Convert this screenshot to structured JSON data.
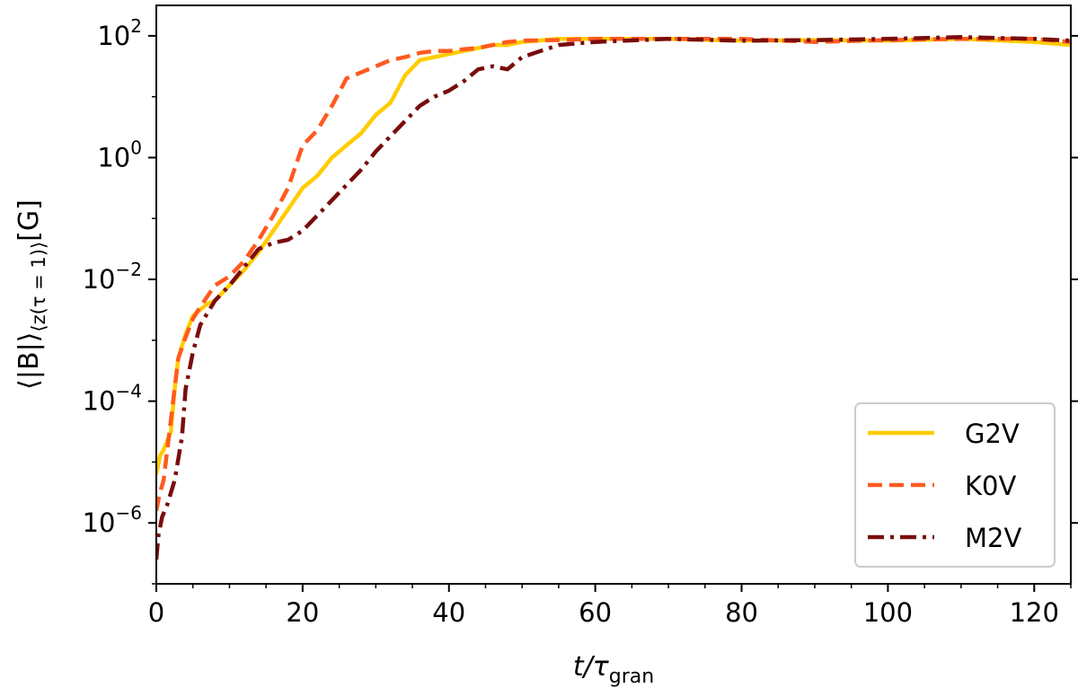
{
  "chart_data": {
    "type": "line",
    "title": "",
    "xlabel": {
      "main": "t/τ",
      "sub": "gran"
    },
    "ylabel": {
      "main": "⟨|B|⟩",
      "sub": "⟨z(τ = 1)⟩",
      "unit": "[G]"
    },
    "xlim": [
      0,
      125
    ],
    "ylim_log10": [
      -7.0,
      2.5
    ],
    "yscale": "log",
    "grid": false,
    "legend_position": "bottom-right",
    "x_ticks": [
      {
        "value": 0,
        "label": "0"
      },
      {
        "value": 20,
        "label": "20"
      },
      {
        "value": 40,
        "label": "40"
      },
      {
        "value": 60,
        "label": "60"
      },
      {
        "value": 80,
        "label": "80"
      },
      {
        "value": 100,
        "label": "100"
      },
      {
        "value": 120,
        "label": "120"
      }
    ],
    "y_ticks": [
      {
        "value_log10": 2,
        "base": "10",
        "exp": "2"
      },
      {
        "value_log10": 0,
        "base": "10",
        "exp": "0"
      },
      {
        "value_log10": -2,
        "base": "10",
        "exp": "−2"
      },
      {
        "value_log10": -4,
        "base": "10",
        "exp": "−4"
      },
      {
        "value_log10": -6,
        "base": "10",
        "exp": "−6"
      }
    ],
    "series": [
      {
        "name": "G2V",
        "color": "#ffcc00",
        "dash": "solid",
        "x": [
          0,
          0.5,
          1,
          2,
          2.5,
          3,
          4,
          5,
          6,
          7,
          8,
          10,
          12,
          14,
          16,
          18,
          20,
          22,
          24,
          26,
          28,
          30,
          32,
          34,
          36,
          38,
          40,
          42,
          44,
          46,
          48,
          50,
          55,
          60,
          70,
          80,
          90,
          100,
          110,
          120,
          125
        ],
        "y_log10": [
          -5.2,
          -4.9,
          -4.8,
          -4.5,
          -3.8,
          -3.3,
          -2.9,
          -2.6,
          -2.5,
          -2.4,
          -2.35,
          -2.1,
          -1.85,
          -1.55,
          -1.2,
          -0.85,
          -0.5,
          -0.3,
          0.0,
          0.2,
          0.4,
          0.7,
          0.9,
          1.35,
          1.6,
          1.65,
          1.7,
          1.75,
          1.8,
          1.85,
          1.85,
          1.9,
          1.95,
          1.95,
          1.95,
          1.92,
          1.93,
          1.92,
          1.95,
          1.9,
          1.85
        ]
      },
      {
        "name": "K0V",
        "color": "#ff5a1f",
        "dash": "dashed",
        "x": [
          0,
          0.5,
          1,
          2,
          3,
          4,
          5,
          6,
          8,
          10,
          12,
          14,
          16,
          18,
          20,
          22,
          24,
          26,
          28,
          30,
          32,
          34,
          36,
          38,
          40,
          42,
          44,
          46,
          48,
          50,
          55,
          60,
          70,
          80,
          90,
          100,
          110,
          120,
          125
        ],
        "y_log10": [
          -5.8,
          -5.5,
          -5.3,
          -4.3,
          -3.3,
          -2.95,
          -2.65,
          -2.45,
          -2.1,
          -1.95,
          -1.7,
          -1.35,
          -0.95,
          -0.5,
          0.2,
          0.45,
          0.85,
          1.3,
          1.4,
          1.5,
          1.6,
          1.65,
          1.72,
          1.75,
          1.75,
          1.78,
          1.8,
          1.85,
          1.9,
          1.92,
          1.93,
          1.95,
          1.95,
          1.95,
          1.9,
          1.93,
          1.95,
          1.95,
          1.9
        ]
      },
      {
        "name": "M2V",
        "color": "#7a0d0d",
        "dash": "dashdot",
        "x": [
          0,
          0.3,
          0.8,
          1.5,
          2.5,
          3.5,
          4,
          5,
          6,
          8,
          10,
          12,
          14,
          16,
          18,
          20,
          22,
          24,
          26,
          28,
          30,
          32,
          34,
          36,
          38,
          40,
          42,
          44,
          46,
          48,
          50,
          55,
          60,
          70,
          80,
          90,
          100,
          110,
          120,
          125
        ],
        "y_log10": [
          -6.6,
          -6.2,
          -5.9,
          -5.7,
          -5.3,
          -4.6,
          -3.8,
          -3.2,
          -2.75,
          -2.35,
          -2.1,
          -1.8,
          -1.5,
          -1.4,
          -1.35,
          -1.2,
          -0.95,
          -0.7,
          -0.45,
          -0.2,
          0.1,
          0.35,
          0.6,
          0.85,
          1.0,
          1.1,
          1.25,
          1.45,
          1.5,
          1.45,
          1.65,
          1.85,
          1.9,
          1.95,
          1.92,
          1.93,
          1.95,
          1.98,
          1.95,
          1.92
        ]
      }
    ]
  }
}
